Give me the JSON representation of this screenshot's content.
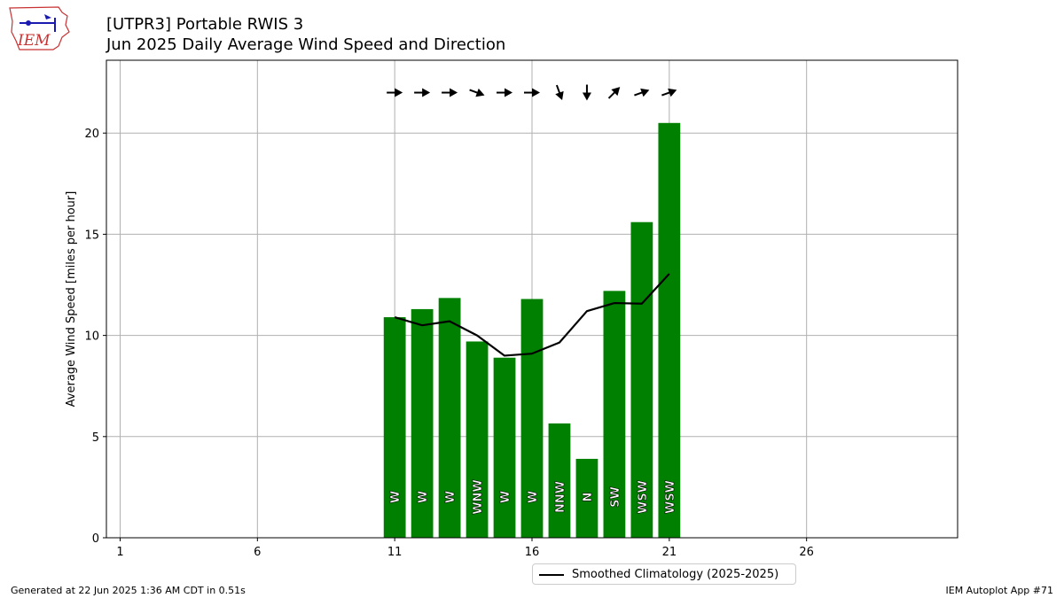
{
  "header": {
    "title_line1": "[UTPR3] Portable RWIS 3",
    "title_line2": "Jun 2025 Daily Average Wind Speed and Direction"
  },
  "logo": {
    "text": "IEM",
    "icon": "iem-logo-icon"
  },
  "footer": {
    "left": "Generated at 22 Jun 2025 1:36 AM CDT in 0.51s",
    "right": "IEM Autoplot App #71"
  },
  "legend": {
    "label": "Smoothed Climatology (2025-2025)"
  },
  "colors": {
    "bar": "#008000",
    "line": "#000000",
    "grid": "#b0b0b0"
  },
  "chart_data": {
    "type": "bar",
    "title": "[UTPR3] Portable RWIS 3",
    "subtitle": "Jun 2025 Daily Average Wind Speed and Direction",
    "xlabel": "",
    "ylabel": "Average Wind Speed [miles per hour]",
    "xlim": [
      0.5,
      31.5
    ],
    "ylim": [
      0,
      23.6
    ],
    "xticks": [
      1,
      6,
      11,
      16,
      21,
      26
    ],
    "yticks": [
      0,
      5,
      10,
      15,
      20
    ],
    "grid": true,
    "legend_position": "bottom-center",
    "bars": {
      "days": [
        11,
        12,
        13,
        14,
        15,
        16,
        17,
        18,
        19,
        20,
        21
      ],
      "values": [
        10.9,
        11.3,
        11.85,
        9.7,
        8.9,
        11.8,
        5.65,
        3.9,
        12.2,
        15.6,
        20.5
      ],
      "direction_labels": [
        "W",
        "W",
        "W",
        "WNW",
        "W",
        "W",
        "NNW",
        "N",
        "SW",
        "WSW",
        "WSW"
      ],
      "arrow_direction_deg": [
        270,
        270,
        270,
        290,
        270,
        270,
        340,
        360,
        225,
        250,
        250
      ]
    },
    "series": [
      {
        "name": "Smoothed Climatology (2025-2025)",
        "type": "line",
        "x": [
          11,
          12,
          13,
          14,
          15,
          16,
          17,
          18,
          19,
          20,
          21
        ],
        "values": [
          10.9,
          10.5,
          10.7,
          10.0,
          9.0,
          9.1,
          9.65,
          11.2,
          11.6,
          11.57,
          13.05
        ]
      }
    ]
  }
}
